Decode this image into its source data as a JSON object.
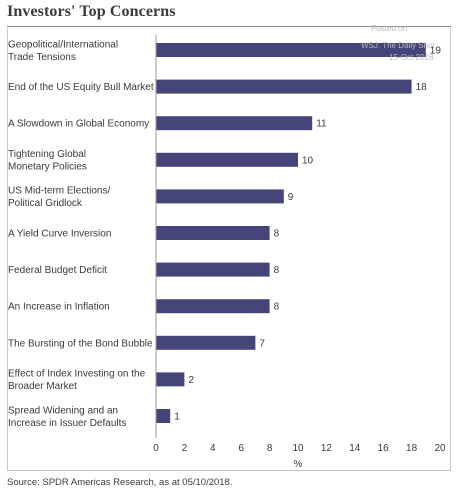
{
  "title": "Investors' Top Concerns",
  "watermark": {
    "line1": "Posted on",
    "line2": "WSJ. The Daily Shot",
    "line3": "15-Oct-2018"
  },
  "source": "Source: SPDR Americas Research, as at 05/10/2018.",
  "colors": {
    "bar": "#45457a",
    "axis": "#9a9a9a",
    "text": "#3a3a3a"
  },
  "chart_data": {
    "type": "bar",
    "orientation": "horizontal",
    "categories": [
      [
        "Geopolitical/International",
        "Trade Tensions"
      ],
      [
        "End of the US Equity Bull Market"
      ],
      [
        "A Slowdown in Global Economy"
      ],
      [
        "Tightening Global",
        "Monetary Policies"
      ],
      [
        "US Mid-term Elections/",
        "Political Gridlock"
      ],
      [
        "A Yield Curve Inversion"
      ],
      [
        "Federal Budget Deficit"
      ],
      [
        "An Increase in Inflation"
      ],
      [
        "The Bursting of the Bond Bubble"
      ],
      [
        "Effect of Index Investing on the",
        "Broader Market"
      ],
      [
        "Spread Widening and an",
        "Increase in Issuer Defaults"
      ]
    ],
    "values": [
      19,
      18,
      11,
      10,
      9,
      8,
      8,
      8,
      7,
      2,
      1
    ],
    "xlim": [
      0,
      20
    ],
    "xticks": [
      0,
      2,
      4,
      6,
      8,
      10,
      12,
      14,
      16,
      18,
      20
    ],
    "xlabel": "%",
    "grid": false,
    "legend": "none"
  }
}
